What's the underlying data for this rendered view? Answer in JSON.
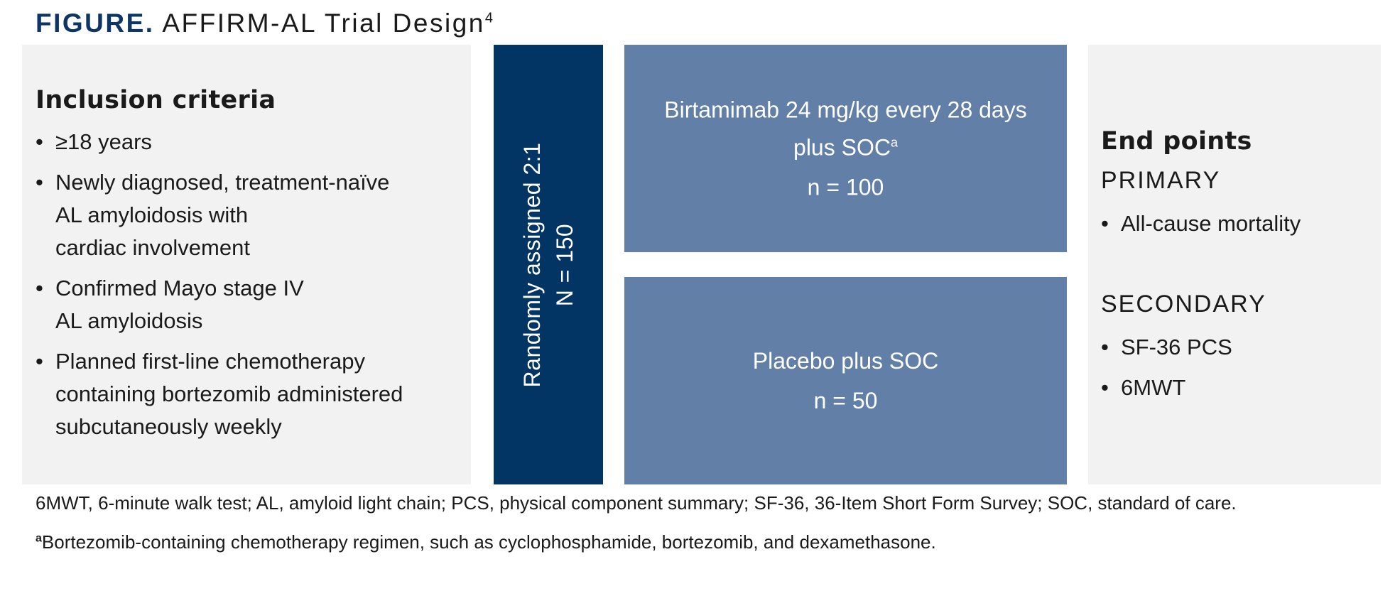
{
  "title": {
    "figure_label": "FIGURE.",
    "name": "AFFIRM-AL Trial Design",
    "superscript": "4"
  },
  "inclusion": {
    "heading": "Inclusion criteria",
    "items": [
      "≥18 years",
      "Newly diagnosed, treatment-naïve\nAL amyloidosis with\ncardiac involvement",
      "Confirmed Mayo stage IV\nAL amyloidosis",
      "Planned first-line chemotherapy\ncontaining bortezomib administered\nsubcutaneously weekly"
    ]
  },
  "randomization": {
    "label": "Randomly assigned 2:1",
    "n": "N = 150"
  },
  "arms": [
    {
      "line1": "Birtamimab 24 mg/kg every 28 days",
      "line2": "plus SOC",
      "line2_sup": "a",
      "n": "n = 100"
    },
    {
      "line1": "Placebo plus SOC",
      "n": "n = 50"
    }
  ],
  "endpoints": {
    "heading": "End points",
    "primary_label": "PRIMARY",
    "primary_items": [
      "All-cause mortality"
    ],
    "secondary_label": "SECONDARY",
    "secondary_items": [
      "SF-36 PCS",
      "6MWT"
    ]
  },
  "footnotes": {
    "abbreviations": "6MWT, 6-minute walk test; AL, amyloid light chain; PCS, physical component summary; SF-36, 36-Item Short Form Survey; SOC, standard of care.",
    "note_marker": "a",
    "note": "Bortezomib-containing chemotherapy regimen, such as cyclophosphamide, bortezomib, and dexamethasone."
  },
  "colors": {
    "title_accent": "#0d3566",
    "randomization_box": "#023564",
    "arm_box": "#627fa8",
    "panel_bg": "#f2f2f2"
  }
}
